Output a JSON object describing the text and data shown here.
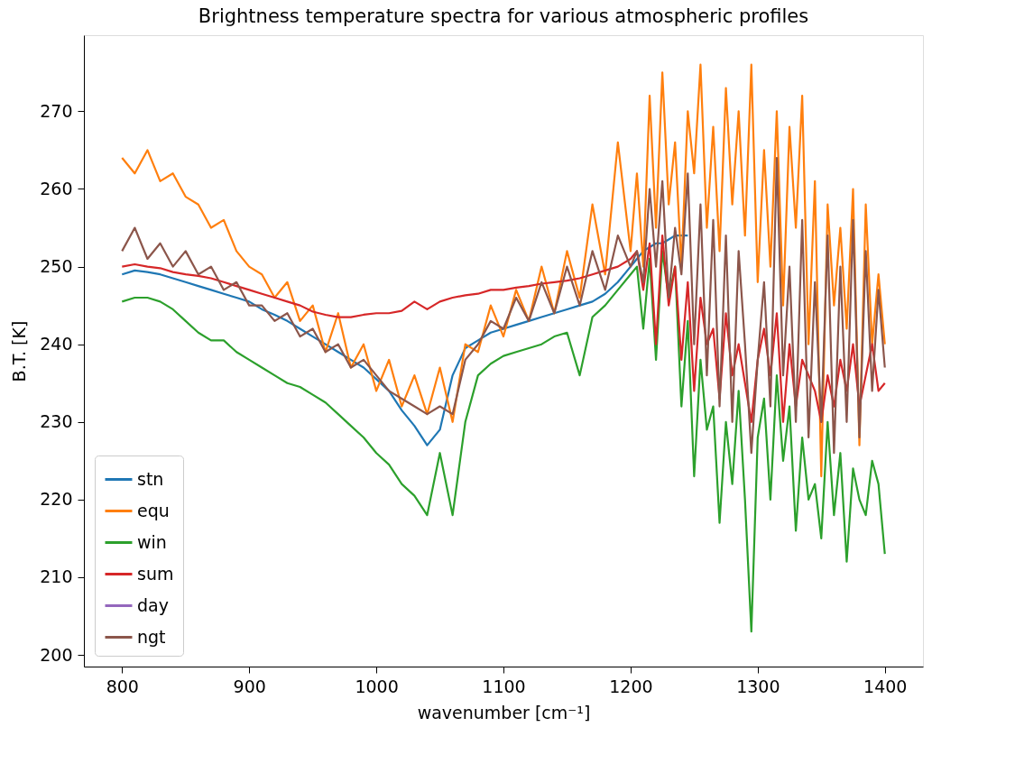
{
  "chart_data": {
    "type": "line",
    "title": "Brightness temperature spectra for various atmospheric profiles",
    "xlabel": "wavenumber [cm⁻¹]",
    "ylabel": "B.T. [K]",
    "x": [
      800,
      810,
      820,
      830,
      840,
      850,
      860,
      870,
      880,
      890,
      900,
      910,
      920,
      930,
      940,
      950,
      960,
      970,
      980,
      990,
      1000,
      1010,
      1020,
      1030,
      1040,
      1050,
      1060,
      1070,
      1080,
      1090,
      1100,
      1110,
      1120,
      1130,
      1140,
      1150,
      1160,
      1170,
      1180,
      1190,
      1200,
      1205,
      1210,
      1215,
      1220,
      1225,
      1230,
      1235,
      1240,
      1245,
      1250,
      1255,
      1260,
      1265,
      1270,
      1275,
      1280,
      1285,
      1290,
      1295,
      1300,
      1305,
      1310,
      1315,
      1320,
      1325,
      1330,
      1335,
      1340,
      1345,
      1350,
      1355,
      1360,
      1365,
      1370,
      1375,
      1380,
      1385,
      1390,
      1395,
      1400
    ],
    "xlim": [
      770,
      1430
    ],
    "ylim": [
      198.5,
      279.8
    ],
    "xticks": [
      800,
      900,
      1000,
      1100,
      1200,
      1300,
      1400
    ],
    "yticks": [
      200,
      210,
      220,
      230,
      240,
      250,
      260,
      270
    ],
    "grid": false,
    "legend": "bottom left",
    "line_style": "solid",
    "marker": "none",
    "series": [
      {
        "name": "stn",
        "color": "#1f77b4",
        "values": [
          249,
          249.5,
          249.3,
          249,
          248.5,
          248,
          247.5,
          247,
          246.5,
          246,
          245.5,
          244.5,
          243.8,
          243,
          242,
          241,
          240,
          239,
          238,
          237,
          235.5,
          234,
          231.5,
          229.5,
          227,
          229,
          236,
          239.5,
          240.5,
          241.5,
          242,
          242.5,
          243,
          243.5,
          244,
          244.5,
          245,
          245.5,
          246.5,
          248,
          250,
          251,
          252,
          252.5,
          253,
          253,
          253.5,
          254,
          254,
          254,
          null,
          null,
          null,
          null,
          null,
          null,
          null,
          null,
          null,
          null,
          null,
          null,
          null,
          null,
          null,
          null,
          null,
          null,
          null,
          null,
          null,
          null,
          null,
          null,
          null,
          null,
          null,
          null,
          null,
          null,
          null
        ]
      },
      {
        "name": "equ",
        "color": "#ff7f0e",
        "values": [
          264,
          262,
          265,
          261,
          262,
          259,
          258,
          255,
          256,
          252,
          250,
          249,
          246,
          248,
          243,
          245,
          239,
          244,
          237,
          240,
          234,
          238,
          232,
          236,
          231,
          237,
          230,
          240,
          239,
          245,
          241,
          247,
          243,
          250,
          244,
          252,
          246,
          258,
          249,
          266,
          252,
          262,
          250,
          272,
          255,
          275,
          258,
          266,
          250,
          270,
          262,
          276,
          255,
          268,
          252,
          273,
          258,
          270,
          254,
          276,
          248,
          265,
          250,
          270,
          245,
          268,
          255,
          272,
          240,
          261,
          223,
          258,
          245,
          255,
          242,
          260,
          227,
          258,
          240,
          249,
          240
        ]
      },
      {
        "name": "win",
        "color": "#2ca02c",
        "values": [
          245.5,
          246,
          246,
          245.5,
          244.5,
          243,
          241.5,
          240.5,
          240.5,
          239,
          238,
          237,
          236,
          235,
          234.5,
          233.5,
          232.5,
          231,
          229.5,
          228,
          226,
          224.5,
          222,
          220.5,
          218,
          226,
          218,
          230,
          236,
          237.5,
          238.5,
          239,
          239.5,
          240,
          241,
          241.5,
          236,
          243.5,
          245,
          247,
          249,
          250,
          242,
          251,
          238,
          252,
          246,
          250,
          232,
          243,
          223,
          238,
          229,
          232,
          217,
          230,
          222,
          234,
          220,
          203,
          228,
          233,
          220,
          236,
          225,
          232,
          216,
          228,
          220,
          222,
          215,
          230,
          218,
          226,
          212,
          224,
          220,
          218,
          225,
          222,
          213
        ]
      },
      {
        "name": "sum",
        "color": "#d62728",
        "values": [
          250,
          250.3,
          250,
          249.8,
          249.3,
          249,
          248.8,
          248.5,
          248,
          247.5,
          247,
          246.5,
          246,
          245.5,
          245,
          244.2,
          243.8,
          243.5,
          243.5,
          243.8,
          244,
          244,
          244.3,
          245.5,
          244.5,
          245.5,
          246,
          246.3,
          246.5,
          247,
          247,
          247.3,
          247.5,
          247.8,
          248,
          248.2,
          248.5,
          249,
          249.5,
          250,
          251,
          252,
          247,
          253,
          240,
          254,
          245,
          250,
          238,
          248,
          234,
          246,
          240,
          242,
          233,
          244,
          236,
          240,
          235,
          230,
          238,
          242,
          236,
          244,
          230,
          240,
          232,
          238,
          236,
          234,
          230,
          236,
          232,
          238,
          234,
          240,
          232,
          236,
          240,
          234,
          235
        ]
      },
      {
        "name": "day",
        "color": "#9467bd",
        "values": [
          null,
          null,
          null,
          null,
          null,
          null,
          null,
          null,
          null,
          null,
          null,
          null,
          null,
          null,
          null,
          null,
          null,
          null,
          null,
          null,
          null,
          null,
          null,
          null,
          null,
          null,
          null,
          null,
          null,
          null,
          null,
          null,
          null,
          null,
          null,
          null,
          null,
          null,
          null,
          null,
          null,
          null,
          null,
          null,
          null,
          null,
          null,
          null,
          null,
          null,
          null,
          null,
          null,
          null,
          null,
          null,
          null,
          null,
          null,
          null,
          null,
          null,
          null,
          null,
          null,
          null,
          null,
          null,
          null,
          null,
          null,
          null,
          null,
          null,
          null,
          null,
          null,
          null,
          null,
          null,
          null
        ]
      },
      {
        "name": "ngt",
        "color": "#8c564b",
        "values": [
          252,
          255,
          251,
          253,
          250,
          252,
          249,
          250,
          247,
          248,
          245,
          245,
          243,
          244,
          241,
          242,
          239,
          240,
          237,
          238,
          236,
          234,
          233,
          232,
          231,
          232,
          231,
          238,
          240,
          243,
          242,
          246,
          243,
          248,
          244,
          250,
          245,
          252,
          247,
          254,
          250,
          252,
          248,
          260,
          250,
          261,
          246,
          255,
          249,
          262,
          240,
          258,
          236,
          256,
          232,
          254,
          230,
          252,
          240,
          226,
          238,
          248,
          232,
          264,
          236,
          250,
          230,
          256,
          228,
          248,
          230,
          254,
          226,
          250,
          230,
          256,
          228,
          252,
          234,
          247,
          237
        ]
      }
    ]
  }
}
